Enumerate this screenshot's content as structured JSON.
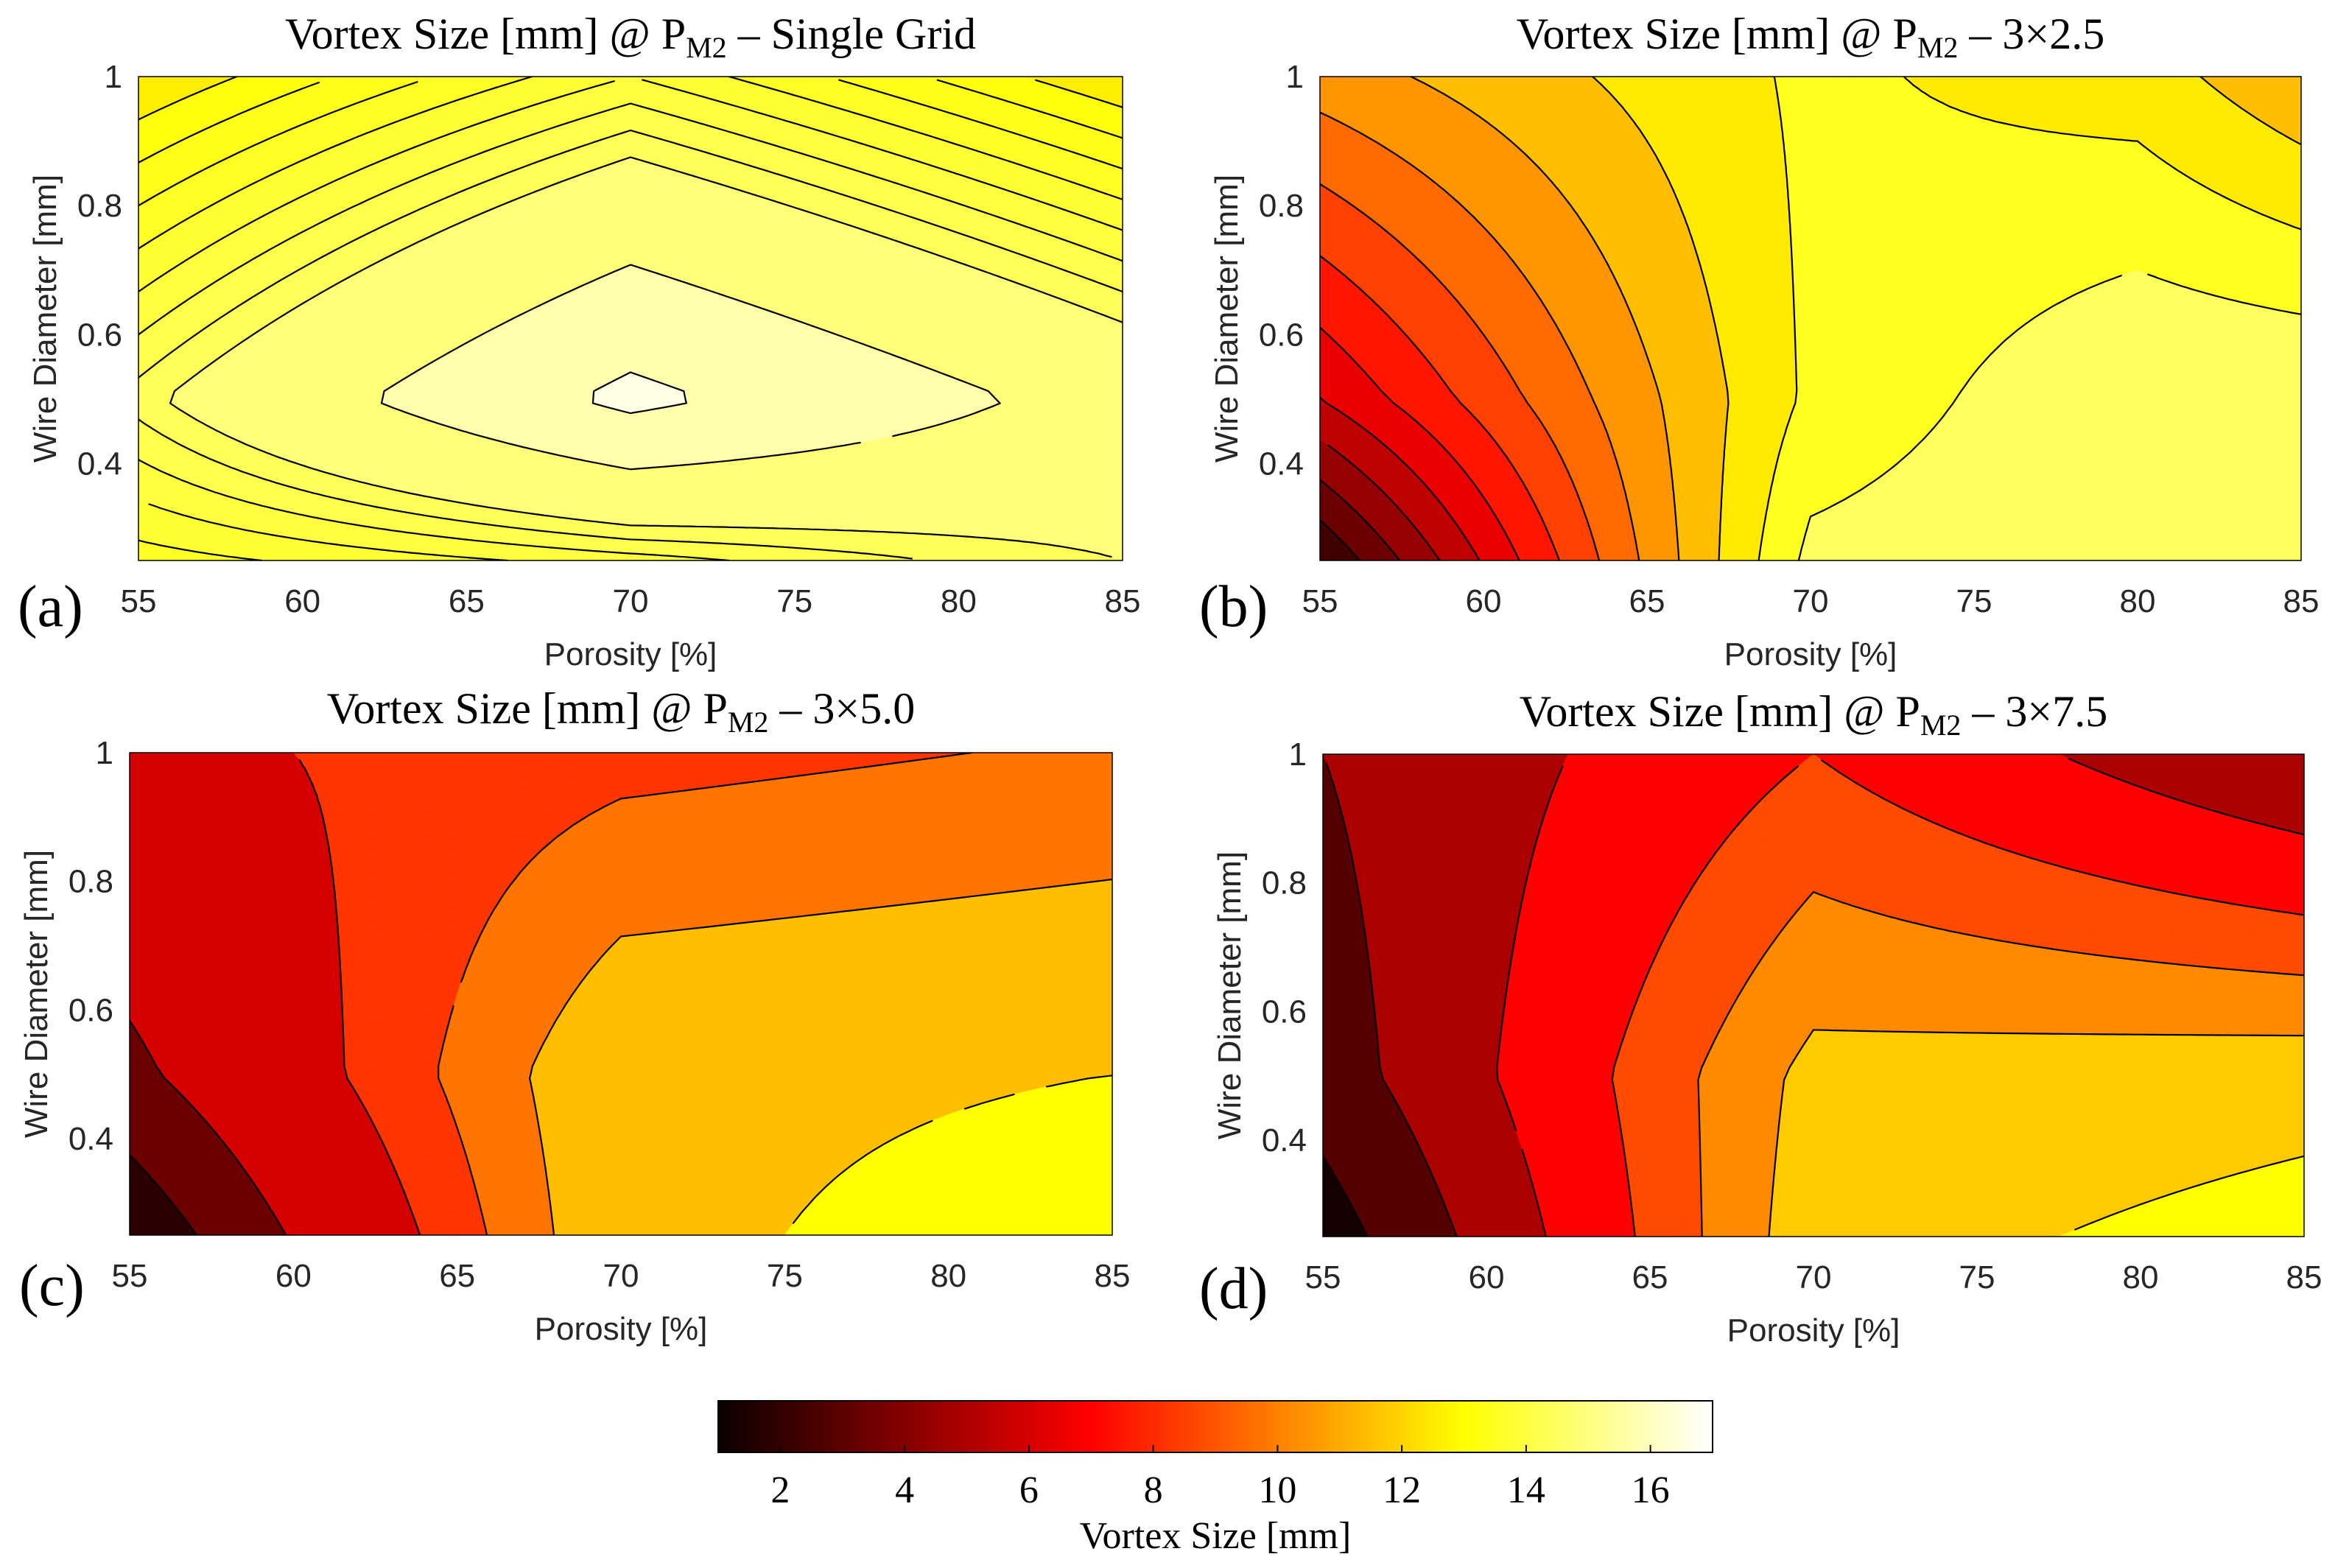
{
  "chart_data": [
    {
      "type": "contour",
      "panel_label": "(a)",
      "title": {
        "pre": "Vortex Size [mm] @ P",
        "sub": "M2",
        "post": " – Single Grid"
      },
      "xlabel": "Porosity [%]",
      "ylabel": "Wire Diameter [mm]",
      "x": [
        55,
        70,
        85
      ],
      "y": [
        0.25,
        0.5,
        1.0
      ],
      "z": [
        [
          13.6,
          14.0,
          14.5
        ],
        [
          14.4,
          16.3,
          15.0
        ],
        [
          12.9,
          13.9,
          12.9
        ]
      ],
      "xlim": [
        55,
        85
      ],
      "ylim": [
        0.25,
        1.0
      ],
      "xticks": [
        55,
        60,
        65,
        70,
        75,
        80,
        85
      ],
      "yticks": [
        0.4,
        0.6,
        0.8,
        1
      ],
      "levels": [
        13.1,
        13.3,
        13.5,
        13.7,
        13.9,
        14.1,
        14.3,
        14.5,
        15.3,
        16.1
      ]
    },
    {
      "type": "contour",
      "panel_label": "(b)",
      "title": {
        "pre": "Vortex Size [mm] @ P",
        "sub": "M2",
        "post": " – 3×2.5"
      },
      "xlabel": "Porosity [%]",
      "ylabel": "Wire Diameter [mm]",
      "x": [
        55,
        70,
        80,
        85
      ],
      "y": [
        0.25,
        0.5,
        1.0
      ],
      "z": [
        [
          2.0,
          14.3,
          15.0,
          15.0
        ],
        [
          6.0,
          13.2,
          15.0,
          15.0
        ],
        [
          10.5,
          13.2,
          12.5,
          11.2
        ]
      ],
      "xlim": [
        55,
        85
      ],
      "ylim": [
        0.25,
        1.0
      ],
      "xticks": [
        55,
        60,
        65,
        70,
        75,
        80,
        85
      ],
      "yticks": [
        0.4,
        0.6,
        0.8,
        1
      ],
      "levels": [
        3,
        4,
        5,
        6,
        7,
        8,
        9,
        10,
        11,
        12,
        13,
        14
      ]
    },
    {
      "type": "contour",
      "panel_label": "(c)",
      "title": {
        "pre": "Vortex Size [mm] @ P",
        "sub": "M2",
        "post": " – 3×5.0"
      },
      "xlabel": "Porosity [%]",
      "ylabel": "Wire Diameter [mm]",
      "x": [
        55,
        70,
        85
      ],
      "y": [
        0.25,
        0.5,
        1.0
      ],
      "z": [
        [
          1.0,
          12.0,
          13.5
        ],
        [
          4.0,
          12.0,
          12.5
        ],
        [
          7.0,
          8.5,
          9.2
        ]
      ],
      "xlim": [
        55,
        85
      ],
      "ylim": [
        0.25,
        1.0
      ],
      "xticks": [
        55,
        60,
        65,
        70,
        75,
        80,
        85
      ],
      "yticks": [
        0.4,
        0.6,
        0.8,
        1
      ],
      "levels": [
        2.5,
        4.5,
        7.5,
        9,
        10.5,
        12.5
      ]
    },
    {
      "type": "contour",
      "panel_label": "(d)",
      "title": {
        "pre": "Vortex Size [mm] @ P",
        "sub": "M2",
        "post": " – 3×7.5"
      },
      "xlabel": "Porosity [%]",
      "ylabel": "Wire Diameter [mm]",
      "x": [
        55,
        70,
        85
      ],
      "y": [
        0.25,
        0.5,
        1.0
      ],
      "z": [
        [
          1.0,
          12.0,
          13.0
        ],
        [
          3.0,
          11.5,
          12.0
        ],
        [
          4.0,
          8.0,
          4.0
        ]
      ],
      "xlim": [
        55,
        85
      ],
      "ylim": [
        0.25,
        1.0
      ],
      "xticks": [
        55,
        60,
        65,
        70,
        75,
        80,
        85
      ],
      "yticks": [
        0.4,
        0.6,
        0.8,
        1
      ],
      "levels": [
        2,
        4,
        6,
        8,
        9.5,
        11,
        12.5
      ]
    }
  ],
  "colorbar": {
    "label": "Vortex Size [mm]",
    "colormap": "hot",
    "range": [
      1,
      17
    ],
    "ticks": [
      2,
      4,
      6,
      8,
      10,
      12,
      14,
      16
    ]
  }
}
